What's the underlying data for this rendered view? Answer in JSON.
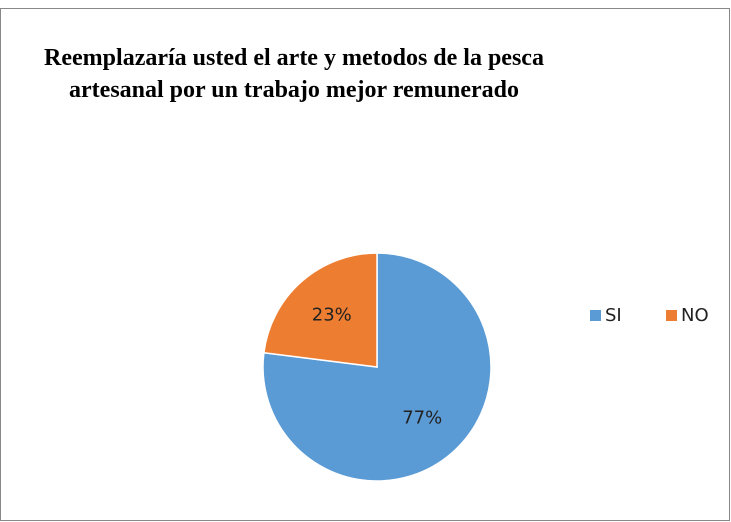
{
  "chart_data": {
    "type": "pie",
    "title": "Reemplazaría usted el arte y metodos de la pesca artesanal por un trabajo mejor remunerado",
    "categories": [
      "SI",
      "NO"
    ],
    "values": [
      77,
      23
    ],
    "value_labels": [
      "77%",
      "23%"
    ],
    "colors": [
      "#5b9bd5",
      "#ed7d31"
    ],
    "legend": "right"
  }
}
